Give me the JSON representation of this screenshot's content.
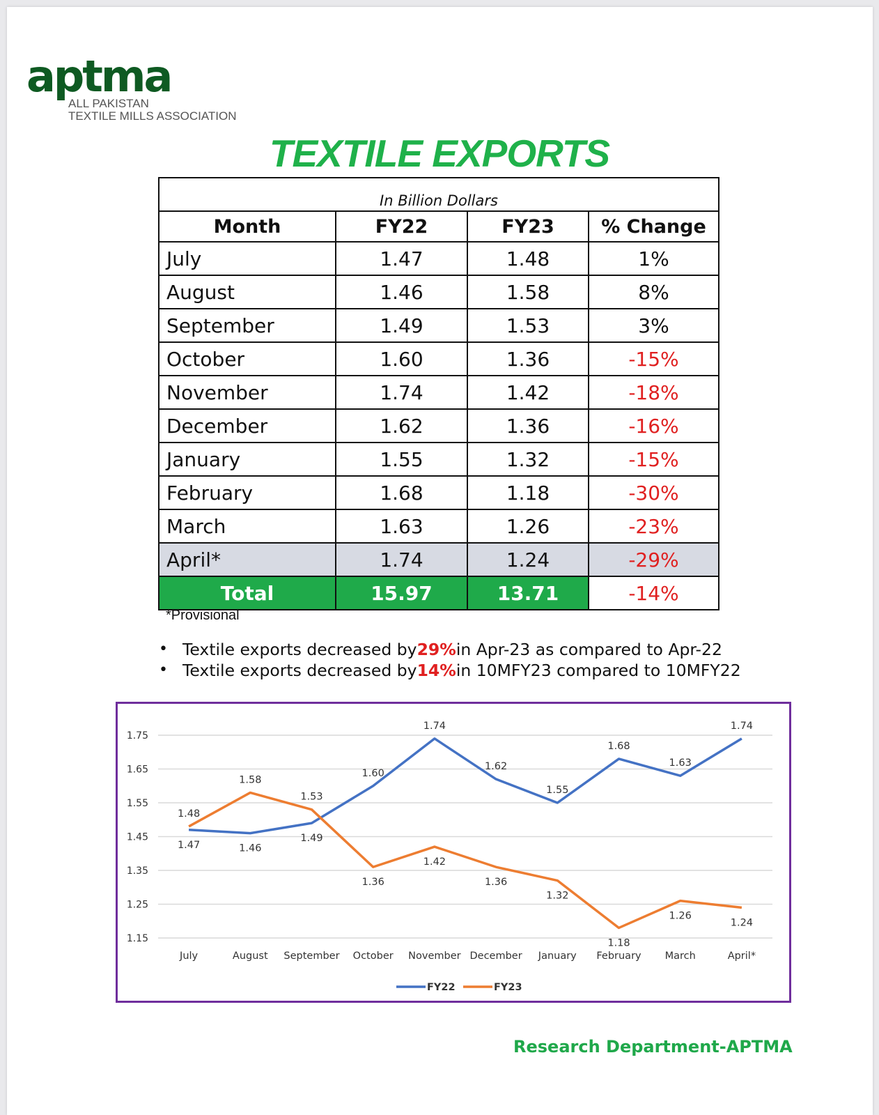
{
  "logo": {
    "mark": "aptma",
    "line1": "ALL PAKISTAN",
    "line2": "TEXTILE MILLS ASSOCIATION",
    "color": "#0e5a22"
  },
  "title": "TEXTILE EXPORTS",
  "table": {
    "unit": "In Billion Dollars",
    "headers": [
      "Month",
      "FY22",
      "FY23",
      "% Change"
    ],
    "rows": [
      {
        "month": "July",
        "fy22": "1.47",
        "fy23": "1.48",
        "change": "1%"
      },
      {
        "month": "August",
        "fy22": "1.46",
        "fy23": "1.58",
        "change": "8%"
      },
      {
        "month": "September",
        "fy22": "1.49",
        "fy23": "1.53",
        "change": "3%"
      },
      {
        "month": "October",
        "fy22": "1.60",
        "fy23": "1.36",
        "change": "-15%"
      },
      {
        "month": "November",
        "fy22": "1.74",
        "fy23": "1.42",
        "change": "-18%"
      },
      {
        "month": "December",
        "fy22": "1.62",
        "fy23": "1.36",
        "change": "-16%"
      },
      {
        "month": "January",
        "fy22": "1.55",
        "fy23": "1.32",
        "change": "-15%"
      },
      {
        "month": "February",
        "fy22": "1.68",
        "fy23": "1.18",
        "change": "-30%"
      },
      {
        "month": "March",
        "fy22": "1.63",
        "fy23": "1.26",
        "change": "-23%"
      },
      {
        "month": "April*",
        "fy22": "1.74",
        "fy23": "1.24",
        "change": "-29%"
      }
    ],
    "total": {
      "label": "Total",
      "fy22": "15.97",
      "fy23": "13.71",
      "change": "-14%"
    },
    "note": "*Provisional",
    "colors": {
      "total_fill": "#1faa4a",
      "negative": "#e02020",
      "highlight_row": "#d7dae3"
    }
  },
  "bullets": [
    {
      "pre": "Textile exports decreased by ",
      "hl": "29%",
      "post": " in Apr-23 as compared to Apr-22"
    },
    {
      "pre": "Textile exports decreased by ",
      "hl": "14%",
      "post": " in 10MFY23 compared to 10MFY22"
    }
  ],
  "chart_data": {
    "type": "line",
    "categories": [
      "July",
      "August",
      "September",
      "October",
      "November",
      "December",
      "January",
      "February",
      "March",
      "April*"
    ],
    "series": [
      {
        "name": "FY22",
        "color": "#4472c4",
        "values": [
          1.47,
          1.46,
          1.49,
          1.6,
          1.74,
          1.62,
          1.55,
          1.68,
          1.63,
          1.74
        ]
      },
      {
        "name": "FY23",
        "color": "#ed7d31",
        "values": [
          1.48,
          1.58,
          1.53,
          1.36,
          1.42,
          1.36,
          1.32,
          1.18,
          1.26,
          1.24
        ]
      }
    ],
    "yticks": [
      "1.75",
      "1.65",
      "1.55",
      "1.45",
      "1.35",
      "1.25",
      "1.15"
    ],
    "ylim": [
      1.15,
      1.75
    ],
    "grid": true,
    "data_labels": true,
    "legend": "bottom",
    "frame_color": "#6f2e9c"
  },
  "footer": "Research Department-APTMA"
}
